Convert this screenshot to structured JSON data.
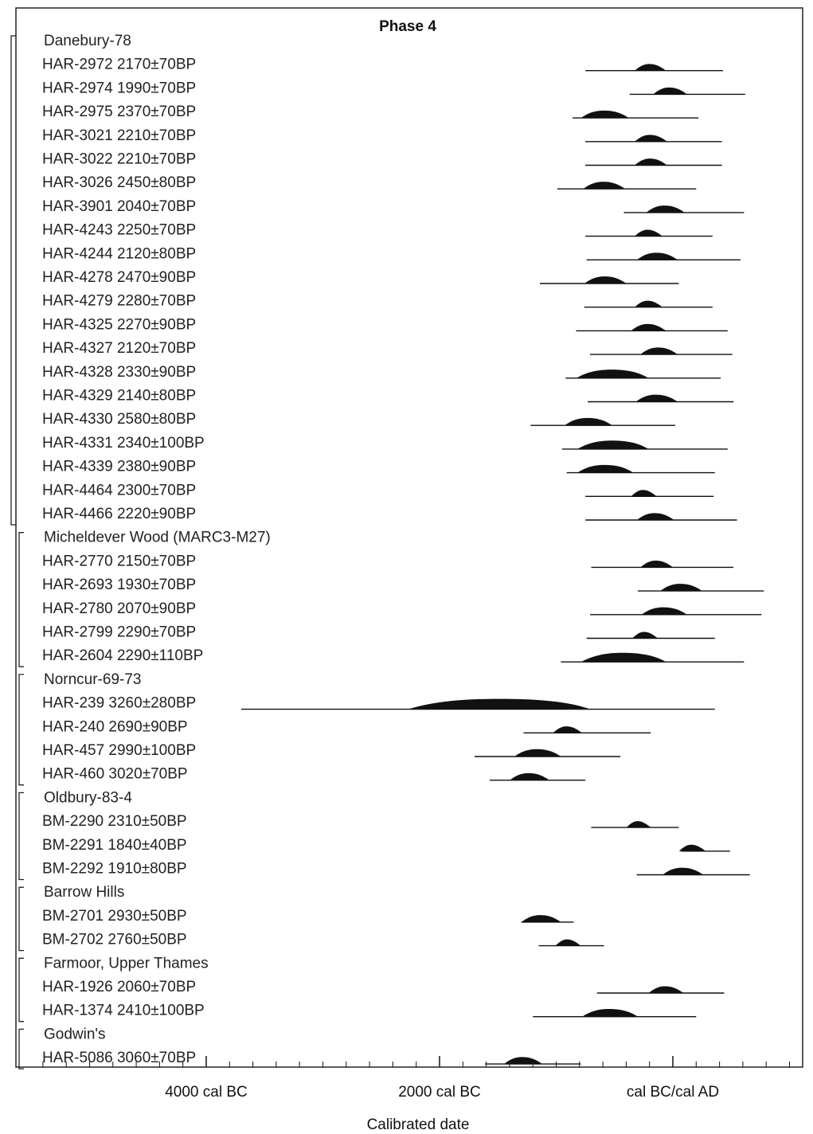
{
  "chart_data": {
    "type": "range",
    "title": "Phase 4",
    "xlabel": "Calibrated date",
    "x_tick_labels": [
      "4000 cal BC",
      "2000 cal BC",
      "cal BC/cal AD"
    ],
    "groups": [
      {
        "name": "Danebury-78",
        "samples": [
          {
            "label": "HAR-2972  2170±70BP",
            "range": [
              -750,
              430
            ],
            "peak": [
              -300,
              -100
            ]
          },
          {
            "label": "HAR-2974  1990±70BP",
            "range": [
              -370,
              620
            ],
            "peak": [
              -140,
              80
            ]
          },
          {
            "label": "HAR-2975  2370±70BP",
            "range": [
              -860,
              220
            ],
            "peak": [
              -760,
              -420
            ]
          },
          {
            "label": "HAR-3021  2210±70BP",
            "range": [
              -750,
              420
            ],
            "peak": [
              -300,
              -90
            ]
          },
          {
            "label": "HAR-3022  2210±70BP",
            "range": [
              -750,
              420
            ],
            "peak": [
              -300,
              -90
            ]
          },
          {
            "label": "HAR-3026  2450±80BP",
            "range": [
              -990,
              200
            ],
            "peak": [
              -740,
              -450
            ]
          },
          {
            "label": "HAR-3901  2040±70BP",
            "range": [
              -420,
              610
            ],
            "peak": [
              -200,
              60
            ]
          },
          {
            "label": "HAR-4243  2250±70BP",
            "range": [
              -750,
              340
            ],
            "peak": [
              -300,
              -130
            ]
          },
          {
            "label": "HAR-4244  2120±80BP",
            "range": [
              -740,
              580
            ],
            "peak": [
              -280,
              0
            ]
          },
          {
            "label": "HAR-4278  2470±90BP",
            "range": [
              -1140,
              50
            ],
            "peak": [
              -730,
              -440
            ]
          },
          {
            "label": "HAR-4279  2280±70BP",
            "range": [
              -760,
              340
            ],
            "peak": [
              -300,
              -130
            ]
          },
          {
            "label": "HAR-4325  2270±90BP",
            "range": [
              -830,
              470
            ],
            "peak": [
              -330,
              -100
            ]
          },
          {
            "label": "HAR-4327  2120±70BP",
            "range": [
              -710,
              510
            ],
            "peak": [
              -250,
              0
            ]
          },
          {
            "label": "HAR-4328  2330±90BP",
            "range": [
              -920,
              410
            ],
            "peak": [
              -800,
              -250
            ]
          },
          {
            "label": "HAR-4329  2140±80BP",
            "range": [
              -730,
              520
            ],
            "peak": [
              -290,
              0
            ]
          },
          {
            "label": "HAR-4330  2580±80BP",
            "range": [
              -1220,
              20
            ],
            "peak": [
              -900,
              -560
            ]
          },
          {
            "label": "HAR-4331  2340±100BP",
            "range": [
              -950,
              470
            ],
            "peak": [
              -790,
              -250
            ]
          },
          {
            "label": "HAR-4339  2380±90BP",
            "range": [
              -910,
              360
            ],
            "peak": [
              -790,
              -380
            ]
          },
          {
            "label": "HAR-4464  2300±70BP",
            "range": [
              -750,
              350
            ],
            "peak": [
              -330,
              -180
            ]
          },
          {
            "label": "HAR-4466  2220±90BP",
            "range": [
              -750,
              550
            ],
            "peak": [
              -280,
              -30
            ]
          }
        ]
      },
      {
        "name": "Micheldever Wood (MARC3-M27)",
        "samples": [
          {
            "label": "HAR-2770  2150±70BP",
            "range": [
              -700,
              520
            ],
            "peak": [
              -250,
              -40
            ]
          },
          {
            "label": "HAR-2693  1930±70BP",
            "range": [
              -300,
              780
            ],
            "peak": [
              -80,
              210
            ]
          },
          {
            "label": "HAR-2780  2070±90BP",
            "range": [
              -710,
              760
            ],
            "peak": [
              -240,
              80
            ]
          },
          {
            "label": "HAR-2799  2290±70BP",
            "range": [
              -740,
              360
            ],
            "peak": [
              -320,
              -170
            ]
          },
          {
            "label": "HAR-2604  2290±110BP",
            "range": [
              -960,
              610
            ],
            "peak": [
              -760,
              -100
            ]
          }
        ]
      },
      {
        "name": "Norncur-69-73",
        "samples": [
          {
            "label": "HAR-239   3260±280BP",
            "range": [
              -3700,
              360
            ],
            "peak": [
              -2240,
              -750
            ]
          },
          {
            "label": "HAR-240   2690±90BP",
            "range": [
              -1280,
              -190
            ],
            "peak": [
              -1000,
              -820
            ]
          },
          {
            "label": "HAR-457   2990±100BP",
            "range": [
              -1700,
              -450
            ],
            "peak": [
              -1330,
              -1000
            ]
          },
          {
            "label": "HAR-460   3020±70BP",
            "range": [
              -1570,
              -750
            ],
            "peak": [
              -1370,
              -1100
            ]
          }
        ]
      },
      {
        "name": "Oldbury-83-4",
        "samples": [
          {
            "label": "BM-2290   2310±50BP",
            "range": [
              -700,
              50
            ],
            "peak": [
              -370,
              -230
            ]
          },
          {
            "label": "BM-2291   1840±40BP",
            "range": [
              70,
              490
            ],
            "peak": [
              80,
              240
            ]
          },
          {
            "label": "BM-2292   1910±80BP",
            "range": [
              -310,
              660
            ],
            "peak": [
              -60,
              220
            ]
          }
        ]
      },
      {
        "name": "Barrow Hills",
        "samples": [
          {
            "label": "BM-2701   2930±50BP",
            "range": [
              -1300,
              -850
            ],
            "peak": [
              -1270,
              -1000
            ]
          },
          {
            "label": "BM-2702   2760±50BP",
            "range": [
              -1150,
              -590
            ],
            "peak": [
              -980,
              -830
            ]
          }
        ]
      },
      {
        "name": "Farmoor, Upper Thames",
        "samples": [
          {
            "label": "HAR-1926  2060±70BP",
            "range": [
              -650,
              440
            ],
            "peak": [
              -180,
              50
            ]
          },
          {
            "label": "HAR-1374  2410±100BP",
            "range": [
              -1200,
              200
            ],
            "peak": [
              -750,
              -340
            ]
          }
        ]
      },
      {
        "name": "Godwin's",
        "samples": [
          {
            "label": "HAR-5086  3060±70BP",
            "range": [
              -1610,
              -790
            ],
            "peak": [
              -1420,
              -1160
            ]
          }
        ]
      }
    ]
  }
}
